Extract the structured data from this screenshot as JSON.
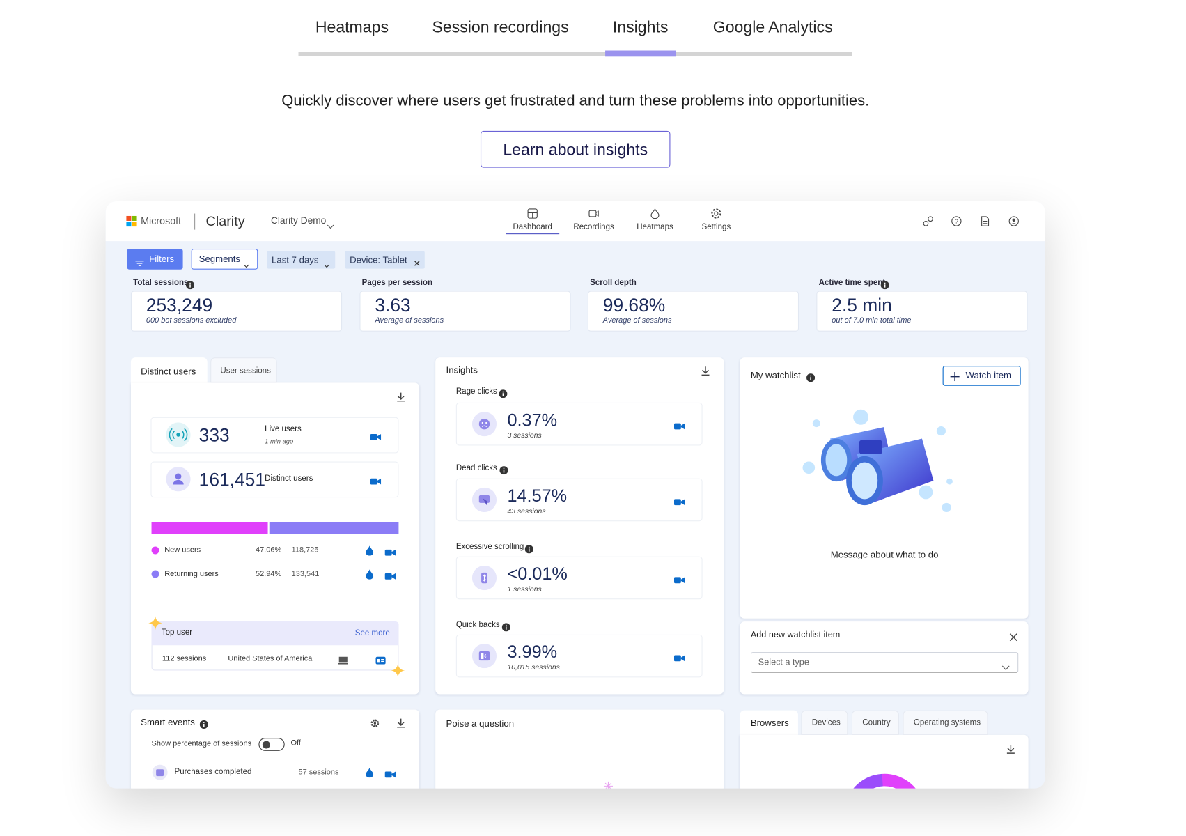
{
  "tabs": [
    {
      "label": "Heatmaps",
      "active": false
    },
    {
      "label": "Session recordings",
      "active": false
    },
    {
      "label": "Insights",
      "active": true
    },
    {
      "label": "Google Analytics",
      "active": false
    }
  ],
  "tagline": "Quickly discover where users get frustrated and turn these problems into opportunities.",
  "cta": "Learn about insights",
  "app": {
    "brand": "Microsoft",
    "product": "Clarity",
    "project": "Clarity Demo",
    "nav": [
      {
        "label": "Dashboard",
        "active": true
      },
      {
        "label": "Recordings",
        "active": false
      },
      {
        "label": "Heatmaps",
        "active": false
      },
      {
        "label": "Settings",
        "active": false
      }
    ],
    "filters": [
      "Filters",
      "Segments",
      "Last 7 days",
      "Device: Tablet"
    ],
    "metrics": [
      {
        "label": "Total sessions",
        "value": "253,249",
        "note": "000 bot sessions excluded"
      },
      {
        "label": "Pages per session",
        "value": "3.63",
        "note": "Average of sessions"
      },
      {
        "label": "Scroll depth",
        "value": "99.68%",
        "note": "Average of sessions"
      },
      {
        "label": "Active time spent",
        "value": "2.5 min",
        "note": "out of 7.0 min total time"
      }
    ],
    "users": {
      "tabs": [
        "Distinct users",
        "User sessions"
      ],
      "live": {
        "value": "333",
        "label": "Live users",
        "note": "1 min ago"
      },
      "distinct": {
        "value": "161,451",
        "label": "Distinct users"
      },
      "breakdown": [
        {
          "name": "New users",
          "share": 47.06,
          "share_label": "47.06%",
          "count": "118,725",
          "color": "#e040fb"
        },
        {
          "name": "Returning users",
          "share": 52.94,
          "share_label": "52.94%",
          "count": "133,541",
          "color": "#8b7cf6"
        }
      ],
      "top_user": {
        "title": "Top user",
        "link": "See more",
        "sessions": "112 sessions",
        "country": "United States of America"
      }
    },
    "insights": {
      "title": "Insights",
      "items": [
        {
          "label": "Rage clicks",
          "value": "0.37%",
          "note": "3 sessions"
        },
        {
          "label": "Dead clicks",
          "value": "14.57%",
          "note": "43 sessions"
        },
        {
          "label": "Excessive scrolling",
          "value": "<0.01%",
          "note": "1 sessions"
        },
        {
          "label": "Quick backs",
          "value": "3.99%",
          "note": "10,015 sessions"
        }
      ]
    },
    "watchlist": {
      "title": "My watchlist",
      "button": "Watch item",
      "message": "Message about what to do",
      "add_title": "Add new watchlist item",
      "select_placeholder": "Select a type"
    },
    "smart_events": {
      "title": "Smart events",
      "toggle_label": "Show percentage of sessions",
      "toggle_state": "Off",
      "events": [
        {
          "name": "Purchases completed",
          "sessions": "57 sessions"
        }
      ]
    },
    "question": {
      "title": "Poise a question"
    },
    "browsers": {
      "tabs": [
        "Browsers",
        "Devices",
        "Country",
        "Operating systems"
      ]
    }
  }
}
